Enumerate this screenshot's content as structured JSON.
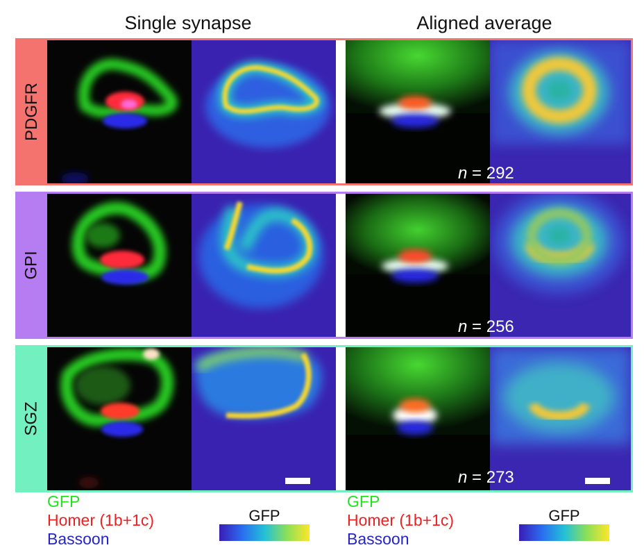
{
  "headers": {
    "single_synapse": "Single synapse",
    "aligned_average": "Aligned average"
  },
  "rows": [
    {
      "label": "PDGFR",
      "n_value": "292",
      "color": "#f4736f"
    },
    {
      "label": "GPI",
      "n_value": "256",
      "color": "#b67cf2"
    },
    {
      "label": "SGZ",
      "n_value": "273",
      "color": "#72f0bf"
    }
  ],
  "n_label": {
    "italic": "n",
    "equals": " = "
  },
  "legend": {
    "gfp": "GFP",
    "gfp_color": "#22e01e",
    "homer": "Homer (1b+1c)",
    "homer_color": "#ee2020",
    "bassoon": "Bassoon",
    "bassoon_color": "#2424c8"
  },
  "colorbar": {
    "title": "GFP",
    "colors": [
      "#3a1cb6",
      "#2a6cf0",
      "#22c0d8",
      "#8ce058",
      "#fce62a"
    ]
  }
}
